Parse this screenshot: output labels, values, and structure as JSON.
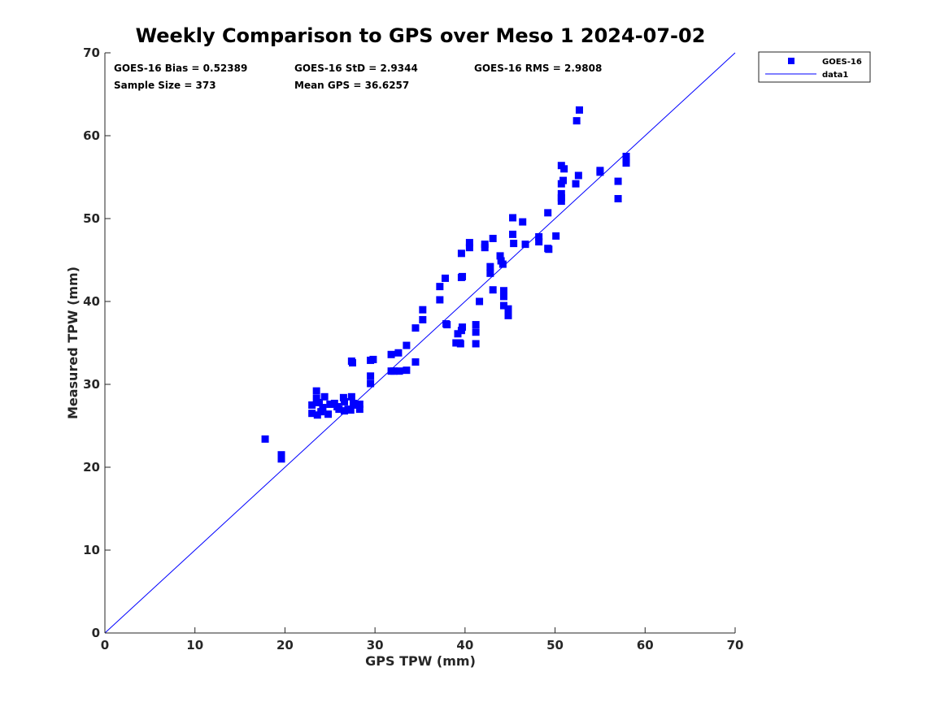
{
  "colors": {
    "series": "#0000ff",
    "axis": "#262626",
    "background": "#ffffff"
  },
  "chart_data": {
    "type": "scatter",
    "title": "Weekly Comparison to GPS over Meso 1 2024-07-02",
    "xlabel": "GPS TPW (mm)",
    "ylabel": "Measured TPW (mm)",
    "xlim": [
      0,
      70
    ],
    "ylim": [
      0,
      70
    ],
    "xticks": [
      "0",
      "10",
      "20",
      "30",
      "40",
      "50",
      "60",
      "70"
    ],
    "yticks": [
      "0",
      "10",
      "20",
      "30",
      "40",
      "50",
      "60",
      "70"
    ],
    "grid": false,
    "legend_position": "outside top-right",
    "stats": [
      "GOES-16 Bias = 0.52389",
      "GOES-16 StD = 2.9344",
      "GOES-16 RMS = 2.9808",
      "Sample Size = 373",
      "Mean GPS = 36.6257"
    ],
    "series": [
      {
        "name": "GOES-16",
        "marker": "square",
        "color": "#0000ff",
        "points": [
          [
            17.8,
            23.4
          ],
          [
            19.6,
            21.5
          ],
          [
            19.6,
            21.0
          ],
          [
            23.0,
            27.5
          ],
          [
            23.0,
            26.5
          ],
          [
            23.5,
            29.2
          ],
          [
            23.5,
            28.3
          ],
          [
            23.6,
            26.3
          ],
          [
            23.8,
            27.8
          ],
          [
            24.0,
            26.7
          ],
          [
            24.2,
            27.2
          ],
          [
            24.4,
            28.5
          ],
          [
            24.8,
            26.4
          ],
          [
            25.0,
            27.6
          ],
          [
            25.5,
            27.7
          ],
          [
            25.8,
            27.3
          ],
          [
            26.0,
            27.0
          ],
          [
            26.5,
            28.4
          ],
          [
            26.6,
            27.9
          ],
          [
            26.6,
            26.8
          ],
          [
            27.0,
            27.0
          ],
          [
            27.3,
            26.9
          ],
          [
            27.4,
            28.5
          ],
          [
            27.4,
            32.8
          ],
          [
            27.5,
            32.6
          ],
          [
            27.6,
            27.7
          ],
          [
            28.0,
            27.5
          ],
          [
            28.3,
            27.0
          ],
          [
            28.3,
            27.6
          ],
          [
            29.5,
            32.9
          ],
          [
            29.5,
            31.0
          ],
          [
            29.5,
            30.1
          ],
          [
            29.8,
            33.0
          ],
          [
            31.8,
            33.6
          ],
          [
            31.8,
            31.6
          ],
          [
            32.1,
            31.6
          ],
          [
            32.6,
            33.8
          ],
          [
            32.7,
            31.6
          ],
          [
            33.5,
            34.7
          ],
          [
            33.5,
            31.7
          ],
          [
            34.5,
            36.8
          ],
          [
            34.5,
            32.7
          ],
          [
            35.3,
            39.0
          ],
          [
            35.3,
            37.8
          ],
          [
            37.2,
            41.8
          ],
          [
            37.2,
            40.2
          ],
          [
            37.8,
            42.8
          ],
          [
            37.9,
            37.3
          ],
          [
            38.0,
            37.2
          ],
          [
            39.0,
            35.0
          ],
          [
            39.2,
            36.1
          ],
          [
            39.4,
            35.0
          ],
          [
            39.5,
            34.9
          ],
          [
            39.6,
            45.8
          ],
          [
            39.6,
            42.9
          ],
          [
            39.7,
            43.0
          ],
          [
            39.7,
            36.9
          ],
          [
            39.6,
            36.5
          ],
          [
            40.5,
            47.1
          ],
          [
            40.5,
            46.5
          ],
          [
            41.2,
            37.2
          ],
          [
            41.2,
            36.3
          ],
          [
            41.2,
            34.9
          ],
          [
            41.6,
            40.0
          ],
          [
            42.2,
            46.9
          ],
          [
            42.2,
            46.5
          ],
          [
            42.8,
            44.2
          ],
          [
            42.8,
            43.4
          ],
          [
            43.1,
            47.6
          ],
          [
            43.1,
            41.4
          ],
          [
            43.9,
            45.5
          ],
          [
            44.0,
            44.9
          ],
          [
            44.2,
            44.5
          ],
          [
            44.3,
            41.3
          ],
          [
            44.3,
            40.6
          ],
          [
            44.3,
            39.5
          ],
          [
            44.8,
            39.1
          ],
          [
            44.8,
            38.3
          ],
          [
            45.3,
            50.1
          ],
          [
            45.3,
            48.1
          ],
          [
            45.4,
            47.0
          ],
          [
            46.4,
            49.6
          ],
          [
            46.7,
            46.9
          ],
          [
            48.2,
            47.8
          ],
          [
            48.2,
            47.2
          ],
          [
            49.2,
            50.7
          ],
          [
            49.2,
            46.4
          ],
          [
            49.3,
            46.3
          ],
          [
            50.1,
            47.9
          ],
          [
            50.7,
            56.4
          ],
          [
            50.7,
            54.2
          ],
          [
            50.7,
            53.0
          ],
          [
            50.7,
            52.5
          ],
          [
            50.7,
            52.1
          ],
          [
            50.9,
            54.6
          ],
          [
            51.0,
            56.0
          ],
          [
            52.3,
            54.2
          ],
          [
            52.4,
            61.8
          ],
          [
            52.6,
            55.2
          ],
          [
            52.7,
            63.1
          ],
          [
            55.0,
            55.8
          ],
          [
            55.0,
            55.6
          ],
          [
            57.0,
            54.5
          ],
          [
            57.0,
            52.4
          ],
          [
            57.9,
            57.5
          ],
          [
            57.9,
            57.1
          ],
          [
            57.9,
            56.7
          ]
        ]
      },
      {
        "name": "data1",
        "type": "line",
        "color": "#0000ff",
        "points": [
          [
            0,
            0
          ],
          [
            70,
            70
          ]
        ]
      }
    ]
  }
}
